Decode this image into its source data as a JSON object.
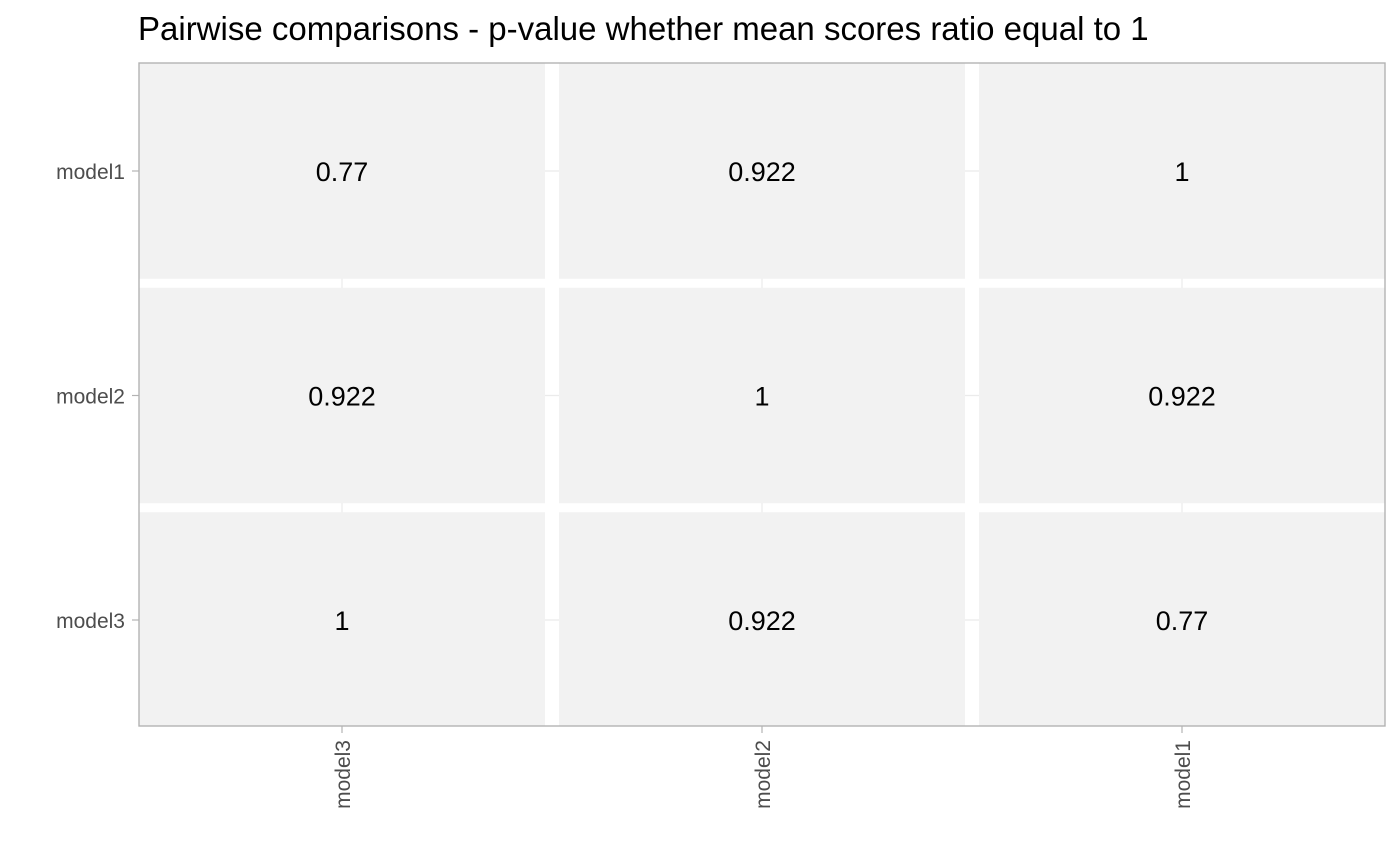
{
  "chart_data": {
    "type": "heatmap",
    "title": "Pairwise comparisons - p-value whether mean scores ratio equal to 1",
    "xlabel": "",
    "ylabel": "",
    "x_categories": [
      "model3",
      "model2",
      "model1"
    ],
    "y_categories": [
      "model1",
      "model2",
      "model3"
    ],
    "values": [
      [
        0.77,
        0.922,
        1
      ],
      [
        0.922,
        1,
        0.922
      ],
      [
        1,
        0.922,
        0.77
      ]
    ],
    "cell_labels": [
      [
        "0.77",
        "0.922",
        "1"
      ],
      [
        "0.922",
        "1",
        "0.922"
      ],
      [
        "1",
        "0.922",
        "0.77"
      ]
    ],
    "legend": "none",
    "grid": true,
    "colors": {
      "cell_fill": "#f2f2f2",
      "panel_background": "#ffffff",
      "panel_border": "#b3b3b3",
      "gridline": "#ebebeb",
      "tick": "#b3b3b3",
      "tick_label": "#4d4d4d",
      "cell_text": "#000000",
      "title": "#000000"
    }
  }
}
